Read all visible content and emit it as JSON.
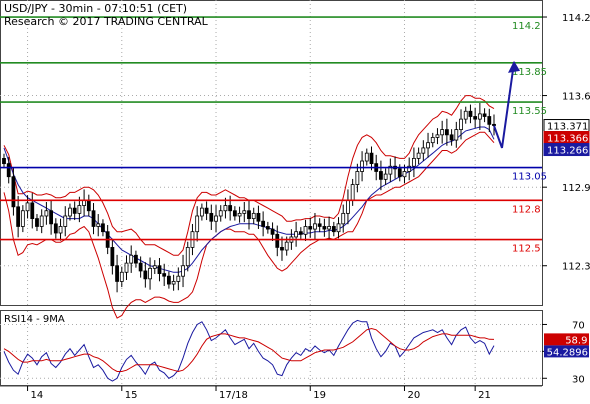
{
  "header": {
    "title": "USD/JPY - 30min - 07:10:51 (CET)",
    "copyright": "Research © 2017 TRADING CENTRAL"
  },
  "colors": {
    "resistance": "#228b22",
    "pivot": "#0000aa",
    "support": "#dd0000",
    "bollinger": "#cc0000",
    "moving_average": "#1a1aa0",
    "candle": "#000000",
    "rsi": "#1a1aa0",
    "rsi_ma": "#cc0000",
    "projection_arrow": "#1a1aa0",
    "grid": "#aaaaaa"
  },
  "chart_data": [
    {
      "type": "candlestick",
      "panel": "price",
      "title": "USD/JPY - 30min - 07:10:51 (CET)",
      "y_ticks": [
        114.2,
        113.6,
        112.9,
        112.3
      ],
      "ylim": [
        112.0,
        114.33
      ],
      "x_ticks": [
        "14",
        "15",
        "17/18",
        "19",
        "20",
        "21"
      ],
      "grid": true,
      "levels": [
        {
          "label": "114.2",
          "value": 114.2,
          "role": "resistance"
        },
        {
          "label": "113.85",
          "value": 113.85,
          "role": "resistance"
        },
        {
          "label": "113.55",
          "value": 113.55,
          "role": "resistance"
        },
        {
          "label": "113.05",
          "value": 113.05,
          "role": "pivot"
        },
        {
          "label": "112.8",
          "value": 112.8,
          "role": "support"
        },
        {
          "label": "112.5",
          "value": 112.5,
          "role": "support"
        }
      ],
      "price_tags": [
        {
          "label": "113.371",
          "value": 113.371,
          "style": "last"
        },
        {
          "label": "113.366",
          "value": 113.366,
          "style": "bollinger"
        },
        {
          "label": "113.266",
          "value": 113.266,
          "style": "ma"
        }
      ],
      "close_series": [
        113.08,
        112.98,
        112.75,
        112.6,
        112.72,
        112.78,
        112.66,
        112.6,
        112.68,
        112.72,
        112.62,
        112.55,
        112.6,
        112.68,
        112.74,
        112.7,
        112.76,
        112.8,
        112.72,
        112.6,
        112.62,
        112.56,
        112.44,
        112.3,
        112.18,
        112.25,
        112.32,
        112.38,
        112.32,
        112.26,
        112.2,
        112.28,
        112.3,
        112.24,
        112.22,
        112.16,
        112.18,
        112.22,
        112.3,
        112.44,
        112.56,
        112.68,
        112.74,
        112.7,
        112.64,
        112.68,
        112.72,
        112.76,
        112.72,
        112.68,
        112.7,
        112.72,
        112.66,
        112.7,
        112.64,
        112.6,
        112.58,
        112.54,
        112.44,
        112.42,
        112.48,
        112.52,
        112.56,
        112.54,
        112.6,
        112.58,
        112.62,
        112.6,
        112.58,
        112.6,
        112.56,
        112.62,
        112.7,
        112.8,
        112.92,
        113.02,
        113.1,
        113.16,
        113.08,
        113.02,
        112.96,
        113.0,
        113.06,
        113.04,
        112.98,
        113.02,
        113.06,
        113.12,
        113.16,
        113.2,
        113.24,
        113.28,
        113.3,
        113.34,
        113.3,
        113.26,
        113.34,
        113.42,
        113.48,
        113.44,
        113.42,
        113.46,
        113.44,
        113.38,
        113.371
      ],
      "bollinger_upper": [
        113.22,
        113.15,
        113.0,
        112.85,
        112.85,
        112.87,
        112.86,
        112.84,
        112.84,
        112.85,
        112.84,
        112.82,
        112.82,
        112.83,
        112.86,
        112.86,
        112.88,
        112.9,
        112.9,
        112.88,
        112.84,
        112.78,
        112.7,
        112.6,
        112.56,
        112.56,
        112.57,
        112.58,
        112.55,
        112.5,
        112.46,
        112.46,
        112.46,
        112.44,
        112.42,
        112.4,
        112.38,
        112.38,
        112.42,
        112.56,
        112.72,
        112.82,
        112.86,
        112.86,
        112.84,
        112.84,
        112.86,
        112.88,
        112.86,
        112.84,
        112.82,
        112.82,
        112.8,
        112.8,
        112.78,
        112.76,
        112.74,
        112.72,
        112.7,
        112.68,
        112.64,
        112.64,
        112.65,
        112.65,
        112.66,
        112.66,
        112.68,
        112.68,
        112.67,
        112.67,
        112.66,
        112.7,
        112.82,
        112.98,
        113.12,
        113.22,
        113.28,
        113.3,
        113.28,
        113.24,
        113.18,
        113.14,
        113.14,
        113.13,
        113.12,
        113.12,
        113.16,
        113.24,
        113.3,
        113.34,
        113.38,
        113.42,
        113.44,
        113.48,
        113.47,
        113.45,
        113.5,
        113.56,
        113.6,
        113.6,
        113.58,
        113.58,
        113.56,
        113.52,
        113.5
      ],
      "bollinger_lower": [
        112.86,
        112.72,
        112.5,
        112.38,
        112.4,
        112.46,
        112.47,
        112.46,
        112.48,
        112.5,
        112.5,
        112.48,
        112.48,
        112.5,
        112.54,
        112.55,
        112.58,
        112.6,
        112.56,
        112.46,
        112.36,
        112.24,
        112.12,
        111.98,
        111.9,
        111.92,
        111.98,
        112.02,
        112.04,
        112.04,
        112.02,
        112.04,
        112.06,
        112.06,
        112.05,
        112.03,
        112.02,
        112.02,
        112.04,
        112.06,
        112.1,
        112.2,
        112.34,
        112.46,
        112.5,
        112.53,
        112.56,
        112.58,
        112.58,
        112.56,
        112.56,
        112.56,
        112.54,
        112.54,
        112.5,
        112.44,
        112.38,
        112.33,
        112.28,
        112.26,
        112.28,
        112.32,
        112.36,
        112.4,
        112.43,
        112.46,
        112.48,
        112.5,
        112.5,
        112.51,
        112.5,
        112.52,
        112.54,
        112.56,
        112.56,
        112.62,
        112.7,
        112.8,
        112.82,
        112.84,
        112.84,
        112.86,
        112.88,
        112.9,
        112.9,
        112.92,
        112.94,
        112.96,
        112.98,
        113.02,
        113.06,
        113.1,
        113.14,
        113.18,
        113.18,
        113.16,
        113.18,
        113.22,
        113.26,
        113.28,
        113.3,
        113.32,
        113.32,
        113.28,
        113.24
      ],
      "moving_average": [
        113.2,
        113.1,
        113.0,
        112.92,
        112.86,
        112.82,
        112.8,
        112.78,
        112.76,
        112.74,
        112.72,
        112.7,
        112.68,
        112.66,
        112.66,
        112.66,
        112.66,
        112.68,
        112.68,
        112.66,
        112.62,
        112.58,
        112.54,
        112.5,
        112.46,
        112.42,
        112.4,
        112.38,
        112.36,
        112.34,
        112.32,
        112.3,
        112.29,
        112.28,
        112.27,
        112.26,
        112.25,
        112.25,
        112.26,
        112.28,
        112.32,
        112.37,
        112.42,
        112.46,
        112.5,
        112.53,
        112.56,
        112.58,
        112.6,
        112.61,
        112.62,
        112.62,
        112.62,
        112.62,
        112.61,
        112.6,
        112.59,
        112.58,
        112.56,
        112.55,
        112.54,
        112.54,
        112.54,
        112.54,
        112.55,
        112.55,
        112.56,
        112.56,
        112.56,
        112.57,
        112.57,
        112.58,
        112.6,
        112.63,
        112.67,
        112.71,
        112.75,
        112.8,
        112.84,
        112.87,
        112.9,
        112.92,
        112.94,
        112.96,
        112.98,
        113.0,
        113.02,
        113.04,
        113.07,
        113.1,
        113.13,
        113.16,
        113.19,
        113.22,
        113.24,
        113.25,
        113.27,
        113.3,
        113.33,
        113.34,
        113.35,
        113.36,
        113.36,
        113.34,
        113.266
      ],
      "projection": [
        [
          113.37,
          113.2
        ],
        [
          113.2,
          113.85
        ]
      ]
    },
    {
      "type": "line",
      "panel": "rsi",
      "title": "RSI14 - 9MA",
      "y_ticks": [
        70,
        50,
        30
      ],
      "ylim": [
        25,
        80
      ],
      "grid": true,
      "x_ticks": [
        "14",
        "15",
        "17/18",
        "19",
        "20",
        "21"
      ],
      "series": [
        {
          "name": "RSI14",
          "values": [
            50,
            42,
            36,
            33,
            42,
            48,
            45,
            40,
            46,
            49,
            41,
            38,
            42,
            48,
            52,
            47,
            51,
            55,
            46,
            38,
            40,
            36,
            30,
            28,
            30,
            38,
            44,
            47,
            42,
            38,
            33,
            40,
            42,
            36,
            34,
            30,
            32,
            36,
            45,
            56,
            64,
            70,
            72,
            66,
            58,
            60,
            63,
            66,
            60,
            55,
            57,
            59,
            52,
            56,
            50,
            45,
            43,
            40,
            33,
            32,
            40,
            45,
            49,
            47,
            52,
            50,
            54,
            51,
            49,
            51,
            47,
            54,
            60,
            66,
            71,
            73,
            72,
            72,
            60,
            52,
            46,
            50,
            56,
            54,
            46,
            50,
            55,
            60,
            62,
            64,
            65,
            66,
            64,
            66,
            60,
            55,
            62,
            66,
            68,
            60,
            56,
            58,
            56,
            48,
            54.2896
          ]
        },
        {
          "name": "9MA",
          "values": [
            52,
            50,
            47,
            44,
            42,
            42,
            43,
            43,
            43,
            44,
            43,
            43,
            43,
            44,
            45,
            46,
            47,
            48,
            48,
            46,
            45,
            43,
            40,
            37,
            35,
            35,
            36,
            38,
            40,
            40,
            40,
            40,
            40,
            39,
            38,
            37,
            36,
            35,
            36,
            39,
            43,
            48,
            54,
            59,
            61,
            62,
            63,
            63,
            62,
            61,
            60,
            60,
            59,
            58,
            57,
            55,
            53,
            51,
            48,
            45,
            44,
            43,
            43,
            43,
            45,
            47,
            49,
            50,
            51,
            51,
            51,
            52,
            53,
            55,
            57,
            60,
            63,
            66,
            67,
            66,
            63,
            60,
            57,
            54,
            52,
            51,
            51,
            52,
            54,
            57,
            59,
            61,
            62,
            63,
            63,
            62,
            62,
            62,
            62,
            62,
            61,
            60,
            60,
            59,
            58.9
          ]
        }
      ],
      "value_tags": [
        {
          "label": "58.9",
          "value": 58.9,
          "series": "9MA"
        },
        {
          "label": "54.2896",
          "value": 54.2896,
          "series": "RSI14"
        }
      ]
    }
  ]
}
